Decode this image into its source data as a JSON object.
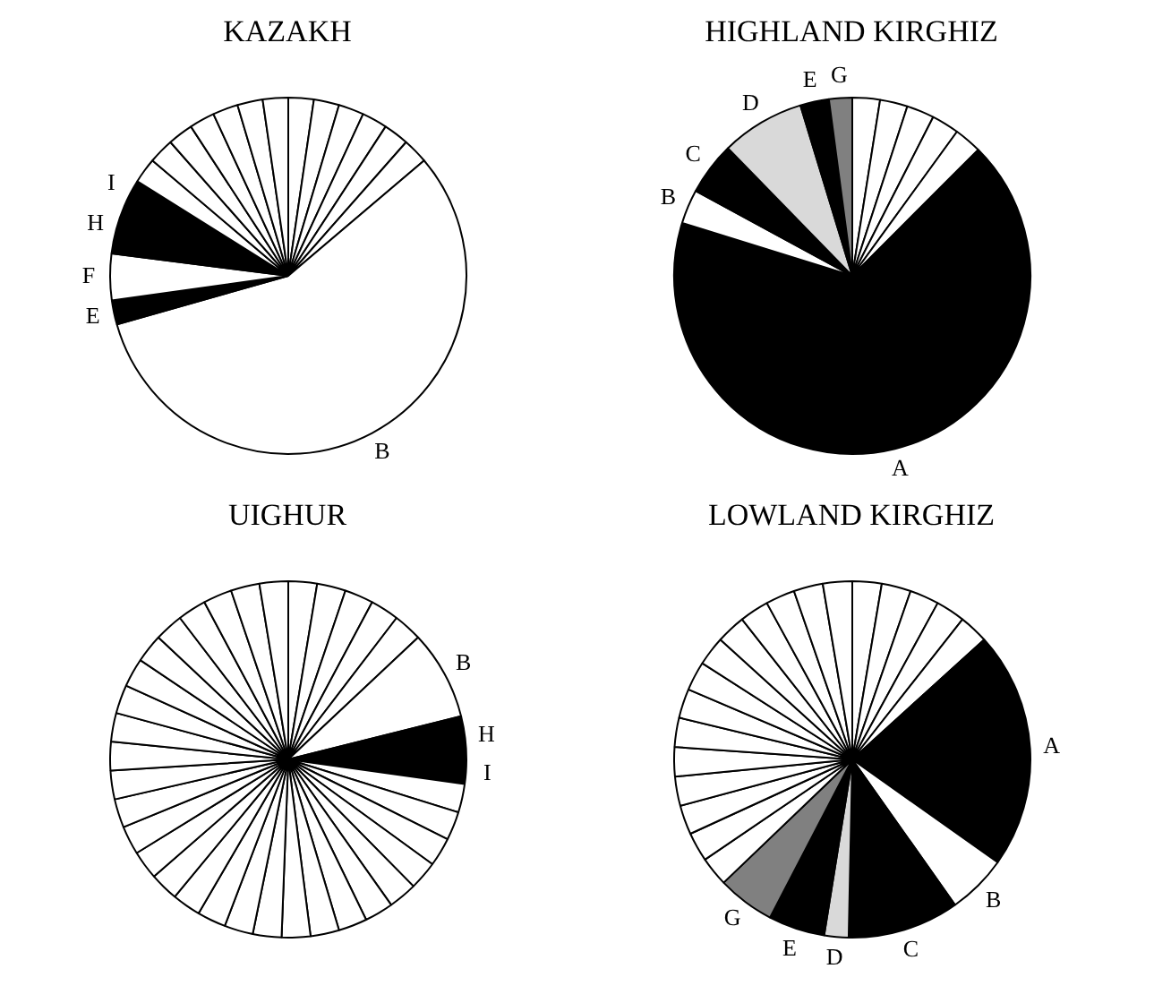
{
  "chart_data": [
    {
      "type": "pie",
      "title": "KAZAKH",
      "categories": [
        null,
        null,
        null,
        null,
        null,
        null,
        "B",
        "E",
        "F",
        "H",
        "I",
        null,
        null,
        null,
        null,
        null,
        null,
        null
      ],
      "values": [
        2.3,
        2.3,
        2.3,
        2.3,
        2.3,
        2.3,
        56.8,
        2.2,
        4.2,
        4.4,
        2.5,
        2.3,
        2.3,
        2.3,
        2.3,
        2.3,
        2.3,
        2.3
      ],
      "colors": [
        "#ffffff",
        "#ffffff",
        "#ffffff",
        "#ffffff",
        "#ffffff",
        "#ffffff",
        "#ffffff",
        "#000000",
        "#ffffff",
        "#000000",
        "#000000",
        "#ffffff",
        "#ffffff",
        "#ffffff",
        "#ffffff",
        "#ffffff",
        "#ffffff",
        "#ffffff"
      ]
    },
    {
      "type": "pie",
      "title": "HIGHLAND KIRGHIZ",
      "categories": [
        null,
        null,
        null,
        null,
        null,
        "A",
        "B",
        "C",
        "D",
        "E",
        "G"
      ],
      "values": [
        2.5,
        2.5,
        2.5,
        2.5,
        2.5,
        67.3,
        3.1,
        4.8,
        7.6,
        2.6,
        2.1
      ],
      "colors": [
        "#ffffff",
        "#ffffff",
        "#ffffff",
        "#ffffff",
        "#ffffff",
        "#000000",
        "#ffffff",
        "#000000",
        "#d9d9d9",
        "#000000",
        "#808080"
      ]
    },
    {
      "type": "pie",
      "title": "UIGHUR",
      "categories": [
        null,
        null,
        null,
        null,
        null,
        "B",
        "H",
        "I",
        null,
        null,
        null,
        null,
        null,
        null,
        null,
        null,
        null,
        null,
        null,
        null,
        null,
        null,
        null,
        null,
        null,
        null,
        null,
        null,
        null,
        null,
        null,
        null,
        null,
        null,
        null,
        null
      ],
      "values": [
        2.6,
        2.6,
        2.6,
        2.6,
        2.6,
        8.1,
        4.0,
        2.1,
        2.6,
        2.6,
        2.6,
        2.6,
        2.6,
        2.6,
        2.6,
        2.6,
        2.6,
        2.6,
        2.6,
        2.6,
        2.6,
        2.6,
        2.6,
        2.6,
        2.6,
        2.6,
        2.6,
        2.6,
        2.6,
        2.6,
        2.6,
        2.6,
        2.6,
        2.6,
        2.6,
        2.6
      ],
      "colors": [
        "#ffffff",
        "#ffffff",
        "#ffffff",
        "#ffffff",
        "#ffffff",
        "#ffffff",
        "#000000",
        "#000000",
        "#ffffff",
        "#ffffff",
        "#ffffff",
        "#ffffff",
        "#ffffff",
        "#ffffff",
        "#ffffff",
        "#ffffff",
        "#ffffff",
        "#ffffff",
        "#ffffff",
        "#ffffff",
        "#ffffff",
        "#ffffff",
        "#ffffff",
        "#ffffff",
        "#ffffff",
        "#ffffff",
        "#ffffff",
        "#ffffff",
        "#ffffff",
        "#ffffff",
        "#ffffff",
        "#ffffff",
        "#ffffff",
        "#ffffff",
        "#ffffff",
        "#ffffff"
      ]
    },
    {
      "type": "pie",
      "title": "LOWLAND KIRGHIZ",
      "categories": [
        null,
        null,
        null,
        null,
        null,
        "A",
        "B",
        "C",
        "D",
        "E",
        "G",
        null,
        null,
        null,
        null,
        null,
        null,
        null,
        null,
        null,
        null,
        null,
        null,
        null,
        null
      ],
      "values": [
        2.65,
        2.65,
        2.65,
        2.65,
        2.65,
        21.5,
        5.4,
        10.1,
        2.2,
        5.1,
        5.2,
        2.65,
        2.65,
        2.65,
        2.65,
        2.65,
        2.65,
        2.65,
        2.65,
        2.65,
        2.65,
        2.65,
        2.65,
        2.65,
        2.65
      ],
      "colors": [
        "#ffffff",
        "#ffffff",
        "#ffffff",
        "#ffffff",
        "#ffffff",
        "#000000",
        "#ffffff",
        "#000000",
        "#d9d9d9",
        "#000000",
        "#808080",
        "#ffffff",
        "#ffffff",
        "#ffffff",
        "#ffffff",
        "#ffffff",
        "#ffffff",
        "#ffffff",
        "#ffffff",
        "#ffffff",
        "#ffffff",
        "#ffffff",
        "#ffffff",
        "#ffffff",
        "#ffffff"
      ]
    }
  ]
}
